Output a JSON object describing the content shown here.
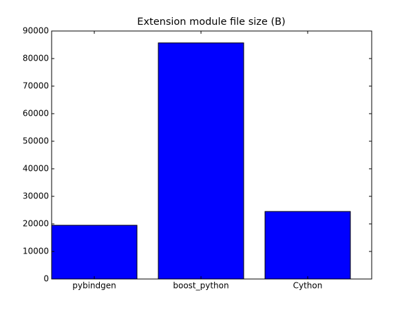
{
  "chart_data": {
    "type": "bar",
    "title": "Extension module file size (B)",
    "categories": [
      "pybindgen",
      "boost_python",
      "Cython"
    ],
    "values": [
      19500,
      85700,
      24500
    ],
    "color": "#0000ff",
    "ylim": [
      0,
      90000
    ],
    "yticks": [
      0,
      10000,
      20000,
      30000,
      40000,
      50000,
      60000,
      70000,
      80000,
      90000
    ]
  }
}
